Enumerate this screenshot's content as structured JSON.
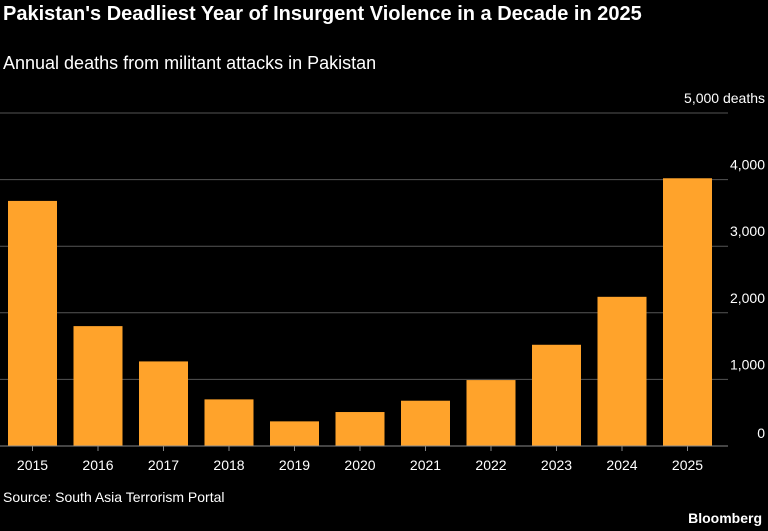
{
  "header": {
    "title": "Pakistan's Deadliest Year of Insurgent Violence in a Decade in 2025",
    "subtitle": "Annual deaths from militant attacks in Pakistan"
  },
  "footer": {
    "source": "Source: South Asia Terrorism Portal",
    "brand": "Bloomberg"
  },
  "colors": {
    "bar": "#ffa32b",
    "grid": "#555555",
    "axis": "#888888",
    "text": "#ffffff"
  },
  "chart_data": {
    "type": "bar",
    "title": "Pakistan's Deadliest Year of Insurgent Violence in a Decade in 2025",
    "subtitle": "Annual deaths from militant attacks in Pakistan",
    "categories": [
      "2015",
      "2016",
      "2017",
      "2018",
      "2019",
      "2020",
      "2021",
      "2022",
      "2023",
      "2024",
      "2025"
    ],
    "values": [
      3680,
      1800,
      1270,
      700,
      370,
      510,
      680,
      990,
      1520,
      2240,
      4020
    ],
    "ylim": [
      0,
      5000
    ],
    "yticks": [
      0,
      1000,
      2000,
      3000,
      4000,
      5000
    ],
    "ytick_labels": [
      "0",
      "1,000",
      "2,000",
      "3,000",
      "4,000",
      "5,000 deaths"
    ],
    "grid": true,
    "yaxis_side": "right"
  }
}
